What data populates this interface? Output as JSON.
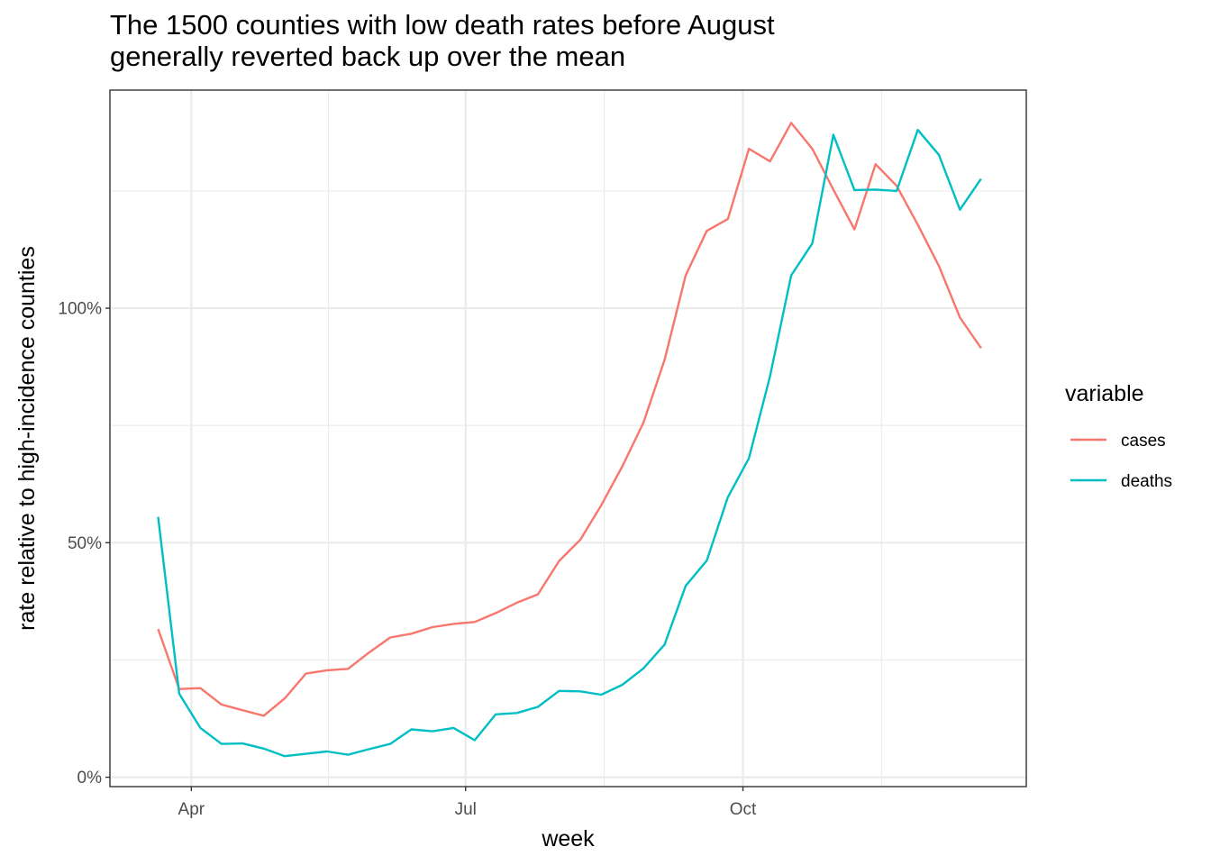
{
  "chart_data": {
    "type": "line",
    "title_lines": [
      "The 1500 counties with low death rates before August",
      "generally reverted back up over the mean"
    ],
    "xlabel": "week",
    "ylabel": "rate relative to high-incidence counties",
    "x_ticks": [
      {
        "label": "Apr",
        "date": "2020-04-01"
      },
      {
        "label": "Jul",
        "date": "2020-07-01"
      },
      {
        "label": "Oct",
        "date": "2020-10-01"
      }
    ],
    "y_ticks": [
      {
        "label": "0%",
        "value": 0
      },
      {
        "label": "50%",
        "value": 0.5
      },
      {
        "label": "100%",
        "value": 1.0
      }
    ],
    "xlim": [
      "2020-03-05",
      "2021-01-03"
    ],
    "ylim": [
      -0.02,
      1.465
    ],
    "grid": true,
    "legend": {
      "title": "variable",
      "position": "right"
    },
    "x": [
      "2020-03-21",
      "2020-03-28",
      "2020-04-04",
      "2020-04-11",
      "2020-04-18",
      "2020-04-25",
      "2020-05-02",
      "2020-05-09",
      "2020-05-16",
      "2020-05-23",
      "2020-05-30",
      "2020-06-06",
      "2020-06-13",
      "2020-06-20",
      "2020-06-27",
      "2020-07-04",
      "2020-07-11",
      "2020-07-18",
      "2020-07-25",
      "2020-08-01",
      "2020-08-08",
      "2020-08-15",
      "2020-08-22",
      "2020-08-29",
      "2020-09-05",
      "2020-09-12",
      "2020-09-19",
      "2020-09-26",
      "2020-10-03",
      "2020-10-10",
      "2020-10-17",
      "2020-10-24",
      "2020-10-31",
      "2020-11-07",
      "2020-11-14",
      "2020-11-21",
      "2020-11-28",
      "2020-12-05",
      "2020-12-12",
      "2020-12-19"
    ],
    "series": [
      {
        "name": "cases",
        "color": "#F8766D",
        "values": [
          0.316,
          0.188,
          0.19,
          0.155,
          0.143,
          0.131,
          0.168,
          0.221,
          0.228,
          0.231,
          0.266,
          0.298,
          0.306,
          0.32,
          0.327,
          0.331,
          0.35,
          0.372,
          0.39,
          0.461,
          0.506,
          0.58,
          0.663,
          0.756,
          0.89,
          1.07,
          1.165,
          1.19,
          1.34,
          1.313,
          1.395,
          1.34,
          1.253,
          1.168,
          1.307,
          1.261,
          1.178,
          1.09,
          0.98,
          0.915
        ]
      },
      {
        "name": "deaths",
        "color": "#00BFC4",
        "values": [
          0.555,
          0.178,
          0.105,
          0.071,
          0.072,
          0.061,
          0.045,
          0.05,
          0.055,
          0.048,
          0.06,
          0.071,
          0.102,
          0.098,
          0.105,
          0.079,
          0.134,
          0.137,
          0.15,
          0.184,
          0.183,
          0.176,
          0.197,
          0.232,
          0.283,
          0.408,
          0.462,
          0.597,
          0.68,
          0.855,
          1.07,
          1.138,
          1.37,
          1.252,
          1.253,
          1.25,
          1.38,
          1.327,
          1.21,
          1.276
        ]
      }
    ]
  }
}
